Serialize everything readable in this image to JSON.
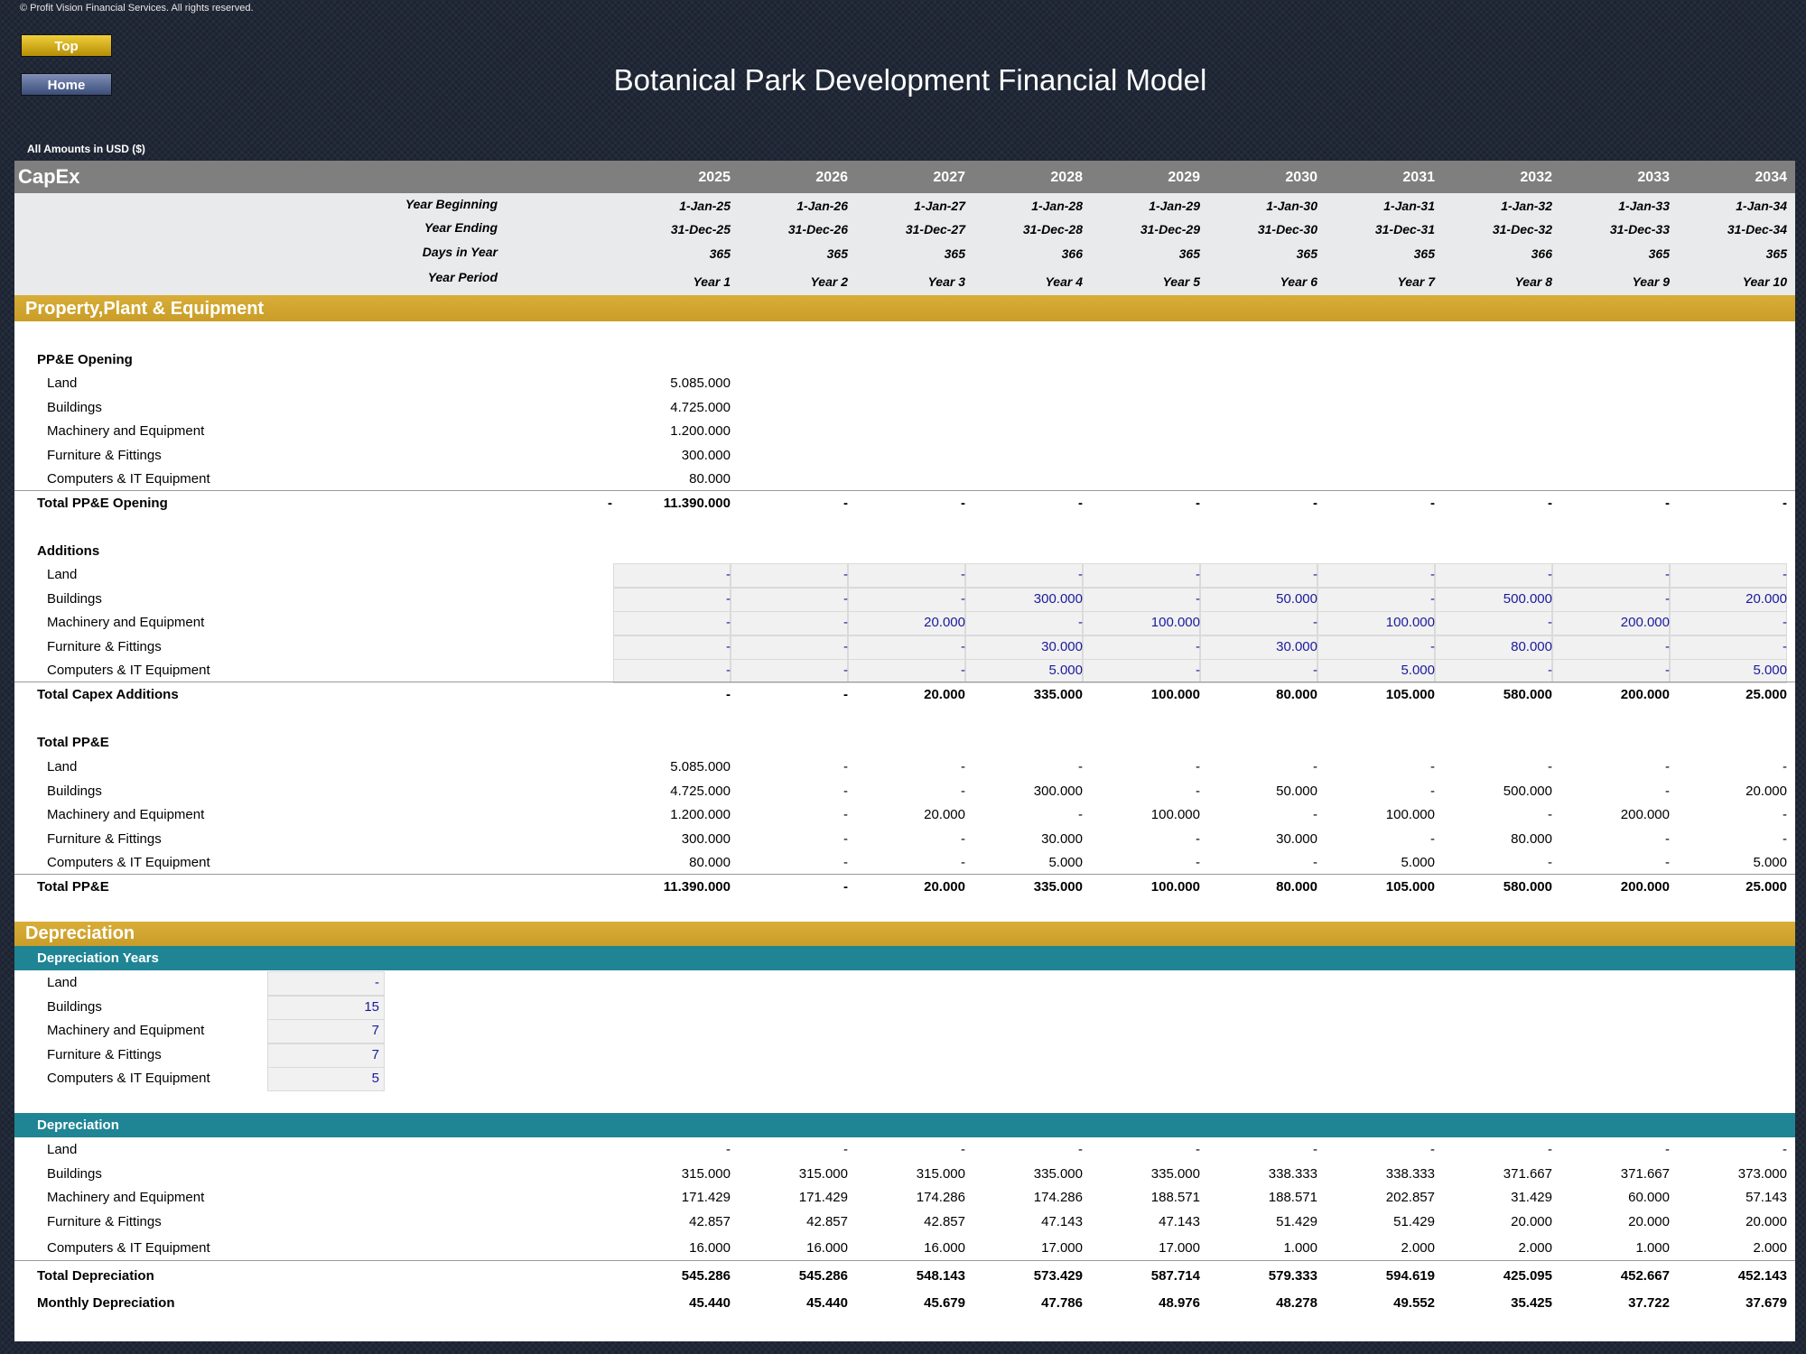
{
  "copyright": "© Profit Vision Financial Services. All rights reserved.",
  "nav": {
    "top": "Top",
    "home": "Home"
  },
  "title": "Botanical Park Development Financial Model",
  "amounts_note": "All Amounts in  USD ($)",
  "section_title": "CapEx",
  "years": [
    "2025",
    "2026",
    "2027",
    "2028",
    "2029",
    "2030",
    "2031",
    "2032",
    "2033",
    "2034"
  ],
  "timeline": {
    "labels": [
      "Year Beginning",
      "Year Ending",
      "Days in Year",
      "Year Period"
    ],
    "rows": [
      [
        "1-Jan-25",
        "1-Jan-26",
        "1-Jan-27",
        "1-Jan-28",
        "1-Jan-29",
        "1-Jan-30",
        "1-Jan-31",
        "1-Jan-32",
        "1-Jan-33",
        "1-Jan-34"
      ],
      [
        "31-Dec-25",
        "31-Dec-26",
        "31-Dec-27",
        "31-Dec-28",
        "31-Dec-29",
        "31-Dec-30",
        "31-Dec-31",
        "31-Dec-32",
        "31-Dec-33",
        "31-Dec-34"
      ],
      [
        "365",
        "365",
        "365",
        "366",
        "365",
        "365",
        "365",
        "366",
        "365",
        "365"
      ],
      [
        "Year 1",
        "Year 2",
        "Year 3",
        "Year 4",
        "Year 5",
        "Year 6",
        "Year 7",
        "Year 8",
        "Year 9",
        "Year 10"
      ]
    ]
  },
  "ppe": {
    "title": "Property,Plant & Equipment",
    "categories": [
      "Land",
      "Buildings",
      "Machinery and Equipment",
      "Furniture & Fittings",
      "Computers & IT Equipment"
    ],
    "opening": {
      "title": "PP&E Opening",
      "values": [
        "5.085.000",
        "4.725.000",
        "1.200.000",
        "300.000",
        "80.000"
      ],
      "total_label": "Total PP&E Opening",
      "total_pre": "-",
      "total": [
        "11.390.000",
        "-",
        "-",
        "-",
        "-",
        "-",
        "-",
        "-",
        "-",
        "-"
      ]
    },
    "additions": {
      "title": "Additions",
      "rows": [
        [
          "-",
          "-",
          "-",
          "-",
          "-",
          "-",
          "-",
          "-",
          "-",
          "-"
        ],
        [
          "-",
          "-",
          "-",
          "300.000",
          "-",
          "50.000",
          "-",
          "500.000",
          "-",
          "20.000"
        ],
        [
          "-",
          "-",
          "20.000",
          "-",
          "100.000",
          "-",
          "100.000",
          "-",
          "200.000",
          "-"
        ],
        [
          "-",
          "-",
          "-",
          "30.000",
          "-",
          "30.000",
          "-",
          "80.000",
          "-",
          "-"
        ],
        [
          "-",
          "-",
          "-",
          "5.000",
          "-",
          "-",
          "5.000",
          "-",
          "-",
          "5.000"
        ]
      ],
      "total_label": "Total Capex Additions",
      "total": [
        "-",
        "-",
        "20.000",
        "335.000",
        "100.000",
        "80.000",
        "105.000",
        "580.000",
        "200.000",
        "25.000"
      ]
    },
    "total_ppe": {
      "title": "Total PP&E",
      "rows": [
        [
          "5.085.000",
          "-",
          "-",
          "-",
          "-",
          "-",
          "-",
          "-",
          "-",
          "-"
        ],
        [
          "4.725.000",
          "-",
          "-",
          "300.000",
          "-",
          "50.000",
          "-",
          "500.000",
          "-",
          "20.000"
        ],
        [
          "1.200.000",
          "-",
          "20.000",
          "-",
          "100.000",
          "-",
          "100.000",
          "-",
          "200.000",
          "-"
        ],
        [
          "300.000",
          "-",
          "-",
          "30.000",
          "-",
          "30.000",
          "-",
          "80.000",
          "-",
          "-"
        ],
        [
          "80.000",
          "-",
          "-",
          "5.000",
          "-",
          "-",
          "5.000",
          "-",
          "-",
          "5.000"
        ]
      ],
      "total_label": "Total PP&E",
      "total": [
        "11.390.000",
        "-",
        "20.000",
        "335.000",
        "100.000",
        "80.000",
        "105.000",
        "580.000",
        "200.000",
        "25.000"
      ]
    }
  },
  "depreciation": {
    "title": "Depreciation",
    "years_title": "Depreciation Years",
    "years_values": [
      "-",
      "15",
      "7",
      "7",
      "5"
    ],
    "table_title": "Depreciation",
    "rows": [
      [
        "-",
        "-",
        "-",
        "-",
        "-",
        "-",
        "-",
        "-",
        "-",
        "-"
      ],
      [
        "315.000",
        "315.000",
        "315.000",
        "335.000",
        "335.000",
        "338.333",
        "338.333",
        "371.667",
        "371.667",
        "373.000"
      ],
      [
        "171.429",
        "171.429",
        "174.286",
        "174.286",
        "188.571",
        "188.571",
        "202.857",
        "31.429",
        "60.000",
        "57.143"
      ],
      [
        "42.857",
        "42.857",
        "42.857",
        "47.143",
        "47.143",
        "51.429",
        "51.429",
        "20.000",
        "20.000",
        "20.000"
      ],
      [
        "16.000",
        "16.000",
        "16.000",
        "17.000",
        "17.000",
        "1.000",
        "2.000",
        "2.000",
        "1.000",
        "2.000"
      ]
    ],
    "total_label": "Total Depreciation",
    "total": [
      "545.286",
      "545.286",
      "548.143",
      "573.429",
      "587.714",
      "579.333",
      "594.619",
      "425.095",
      "452.667",
      "452.143"
    ],
    "monthly_label": "Monthly Depreciation",
    "monthly": [
      "45.440",
      "45.440",
      "45.679",
      "47.786",
      "48.976",
      "48.278",
      "49.552",
      "35.425",
      "37.722",
      "37.679"
    ]
  }
}
